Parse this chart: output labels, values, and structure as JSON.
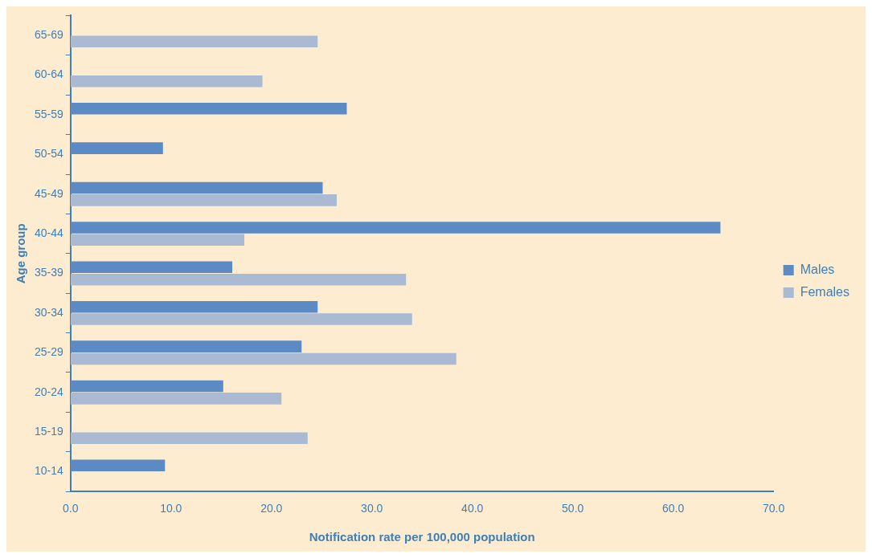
{
  "chart_data": {
    "type": "bar",
    "orientation": "horizontal",
    "xlabel": "Notification rate per 100,000 population",
    "ylabel": "Age group",
    "categories": [
      "65-69",
      "60-64",
      "55-59",
      "50-54",
      "45-49",
      "40-44",
      "35-39",
      "30-34",
      "25-29",
      "20-24",
      "15-19",
      "10-14"
    ],
    "series": [
      {
        "name": "Males",
        "color": "#5b8ac4",
        "values": [
          null,
          null,
          27.5,
          9.2,
          25.1,
          64.7,
          16.1,
          24.6,
          23.0,
          15.2,
          null,
          9.4
        ]
      },
      {
        "name": "Females",
        "color": "#a9bad2",
        "values": [
          24.6,
          19.1,
          null,
          null,
          26.5,
          17.3,
          33.4,
          34.0,
          38.4,
          21.0,
          23.6,
          null
        ]
      }
    ],
    "xlim": [
      0,
      70
    ],
    "xticks": [
      {
        "value": 0,
        "label": "0.0"
      },
      {
        "value": 10,
        "label": "10.0"
      },
      {
        "value": 20,
        "label": "20.0"
      },
      {
        "value": 30,
        "label": "30.0"
      },
      {
        "value": 40,
        "label": "40.0"
      },
      {
        "value": 50,
        "label": "50.0"
      },
      {
        "value": 60,
        "label": "60.0"
      },
      {
        "value": 70,
        "label": "70.0"
      }
    ],
    "grid": false,
    "legend": "right"
  }
}
